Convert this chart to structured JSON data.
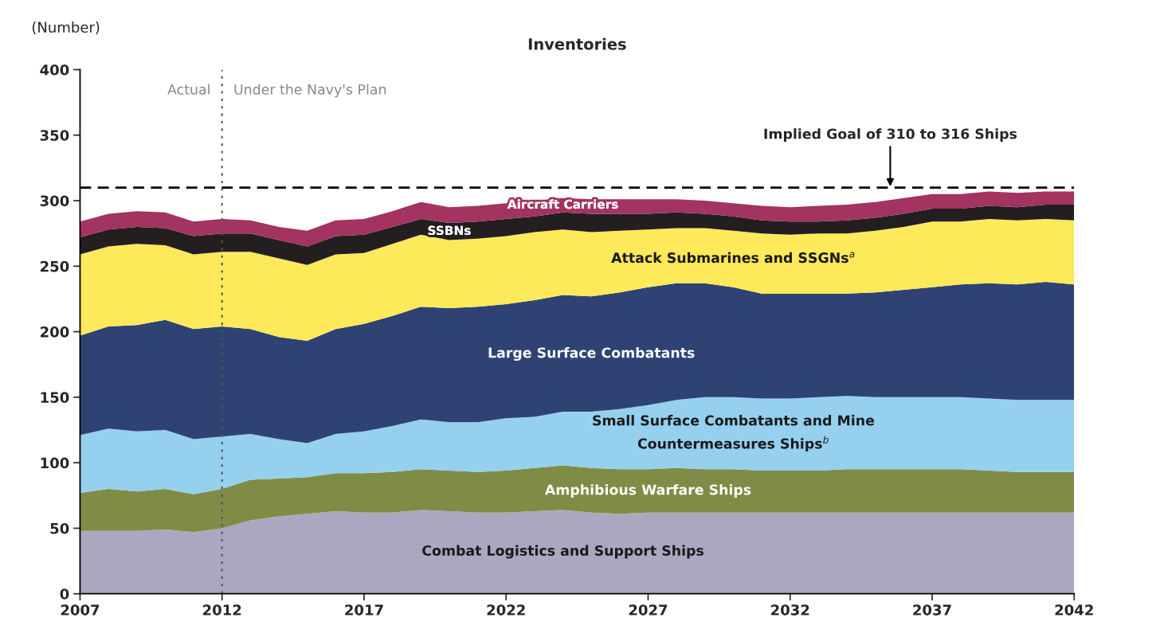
{
  "chart_data": {
    "type": "area",
    "stacked": true,
    "title": "Inventories",
    "ylabel": "(Number)",
    "x": [
      2007,
      2008,
      2009,
      2010,
      2011,
      2012,
      2013,
      2014,
      2015,
      2016,
      2017,
      2018,
      2019,
      2020,
      2021,
      2022,
      2023,
      2024,
      2025,
      2026,
      2027,
      2028,
      2029,
      2030,
      2031,
      2032,
      2033,
      2034,
      2035,
      2036,
      2037,
      2038,
      2039,
      2040,
      2041,
      2042
    ],
    "xlim": [
      2007,
      2042
    ],
    "xticks": [
      2007,
      2012,
      2017,
      2022,
      2027,
      2032,
      2037,
      2042
    ],
    "ylim": [
      0,
      400
    ],
    "yticks": [
      0,
      50,
      100,
      150,
      200,
      250,
      300,
      350,
      400
    ],
    "grid": false,
    "legend": false,
    "series": [
      {
        "name": "Combat Logistics and Support Ships",
        "color": "#aaa8c0",
        "values": [
          48,
          48,
          48,
          49,
          47,
          50,
          56,
          59,
          61,
          63,
          62,
          62,
          64,
          63,
          62,
          62,
          63,
          64,
          62,
          61,
          62,
          62,
          62,
          62,
          62,
          62,
          62,
          62,
          62,
          62,
          62,
          62,
          62,
          62,
          62,
          62
        ]
      },
      {
        "name": "Amphibious Warfare Ships",
        "color": "#7f8c46",
        "values": [
          29,
          32,
          30,
          31,
          29,
          30,
          31,
          29,
          28,
          29,
          30,
          31,
          31,
          31,
          31,
          32,
          33,
          34,
          34,
          34,
          33,
          34,
          33,
          33,
          32,
          32,
          32,
          33,
          33,
          33,
          33,
          33,
          32,
          31,
          31,
          31
        ]
      },
      {
        "name": "Small Surface Combatants and Mine\nCountermeasures Ships$^{b}$",
        "color": "#96d0ef",
        "values": [
          44,
          46,
          46,
          45,
          42,
          40,
          35,
          30,
          26,
          30,
          32,
          35,
          38,
          37,
          38,
          40,
          39,
          41,
          43,
          46,
          49,
          52,
          55,
          55,
          55,
          55,
          56,
          56,
          55,
          55,
          55,
          55,
          55,
          55,
          55,
          55
        ]
      },
      {
        "name": "Large Surface Combatants",
        "color": "#2e4374",
        "values": [
          76,
          78,
          81,
          84,
          84,
          84,
          80,
          78,
          78,
          80,
          82,
          84,
          86,
          87,
          88,
          87,
          89,
          89,
          88,
          89,
          90,
          89,
          87,
          84,
          80,
          80,
          79,
          78,
          80,
          82,
          84,
          86,
          88,
          88,
          90,
          88
        ]
      },
      {
        "name": "Attack Submarines and SSGNs$^{a}$",
        "color": "#fde95a",
        "values": [
          62,
          61,
          62,
          57,
          57,
          57,
          59,
          60,
          58,
          57,
          54,
          55,
          55,
          52,
          52,
          52,
          52,
          50,
          49,
          47,
          44,
          42,
          42,
          43,
          46,
          45,
          46,
          46,
          47,
          48,
          50,
          48,
          49,
          49,
          48,
          49
        ]
      },
      {
        "name": "SSBNs",
        "color": "#231f20",
        "values": [
          13,
          13,
          13,
          13,
          14,
          14,
          14,
          14,
          14,
          14,
          14,
          13,
          12,
          13,
          13,
          13,
          12,
          13,
          14,
          13,
          12,
          12,
          11,
          11,
          10,
          10,
          9,
          10,
          10,
          10,
          10,
          10,
          10,
          10,
          11,
          12
        ]
      },
      {
        "name": "Aircraft Carriers",
        "color": "#a33361",
        "values": [
          12,
          12,
          12,
          12,
          11,
          11,
          10,
          10,
          12,
          12,
          12,
          12,
          13,
          12,
          12,
          12,
          12,
          11,
          11,
          11,
          11,
          10,
          10,
          10,
          11,
          11,
          12,
          12,
          12,
          12,
          11,
          11,
          11,
          11,
          10,
          10
        ]
      }
    ],
    "ref_lines": [
      {
        "axis": "y",
        "value": 310,
        "label": "Implied Goal of 310 to 316 Ships",
        "color": "#000000",
        "line_style": "dashed"
      },
      {
        "axis": "x",
        "value": 2012,
        "label": null,
        "color": "#555555",
        "line_style": "dotted"
      }
    ],
    "annotations": [
      "Actual",
      "Under the Navy's Plan"
    ]
  }
}
